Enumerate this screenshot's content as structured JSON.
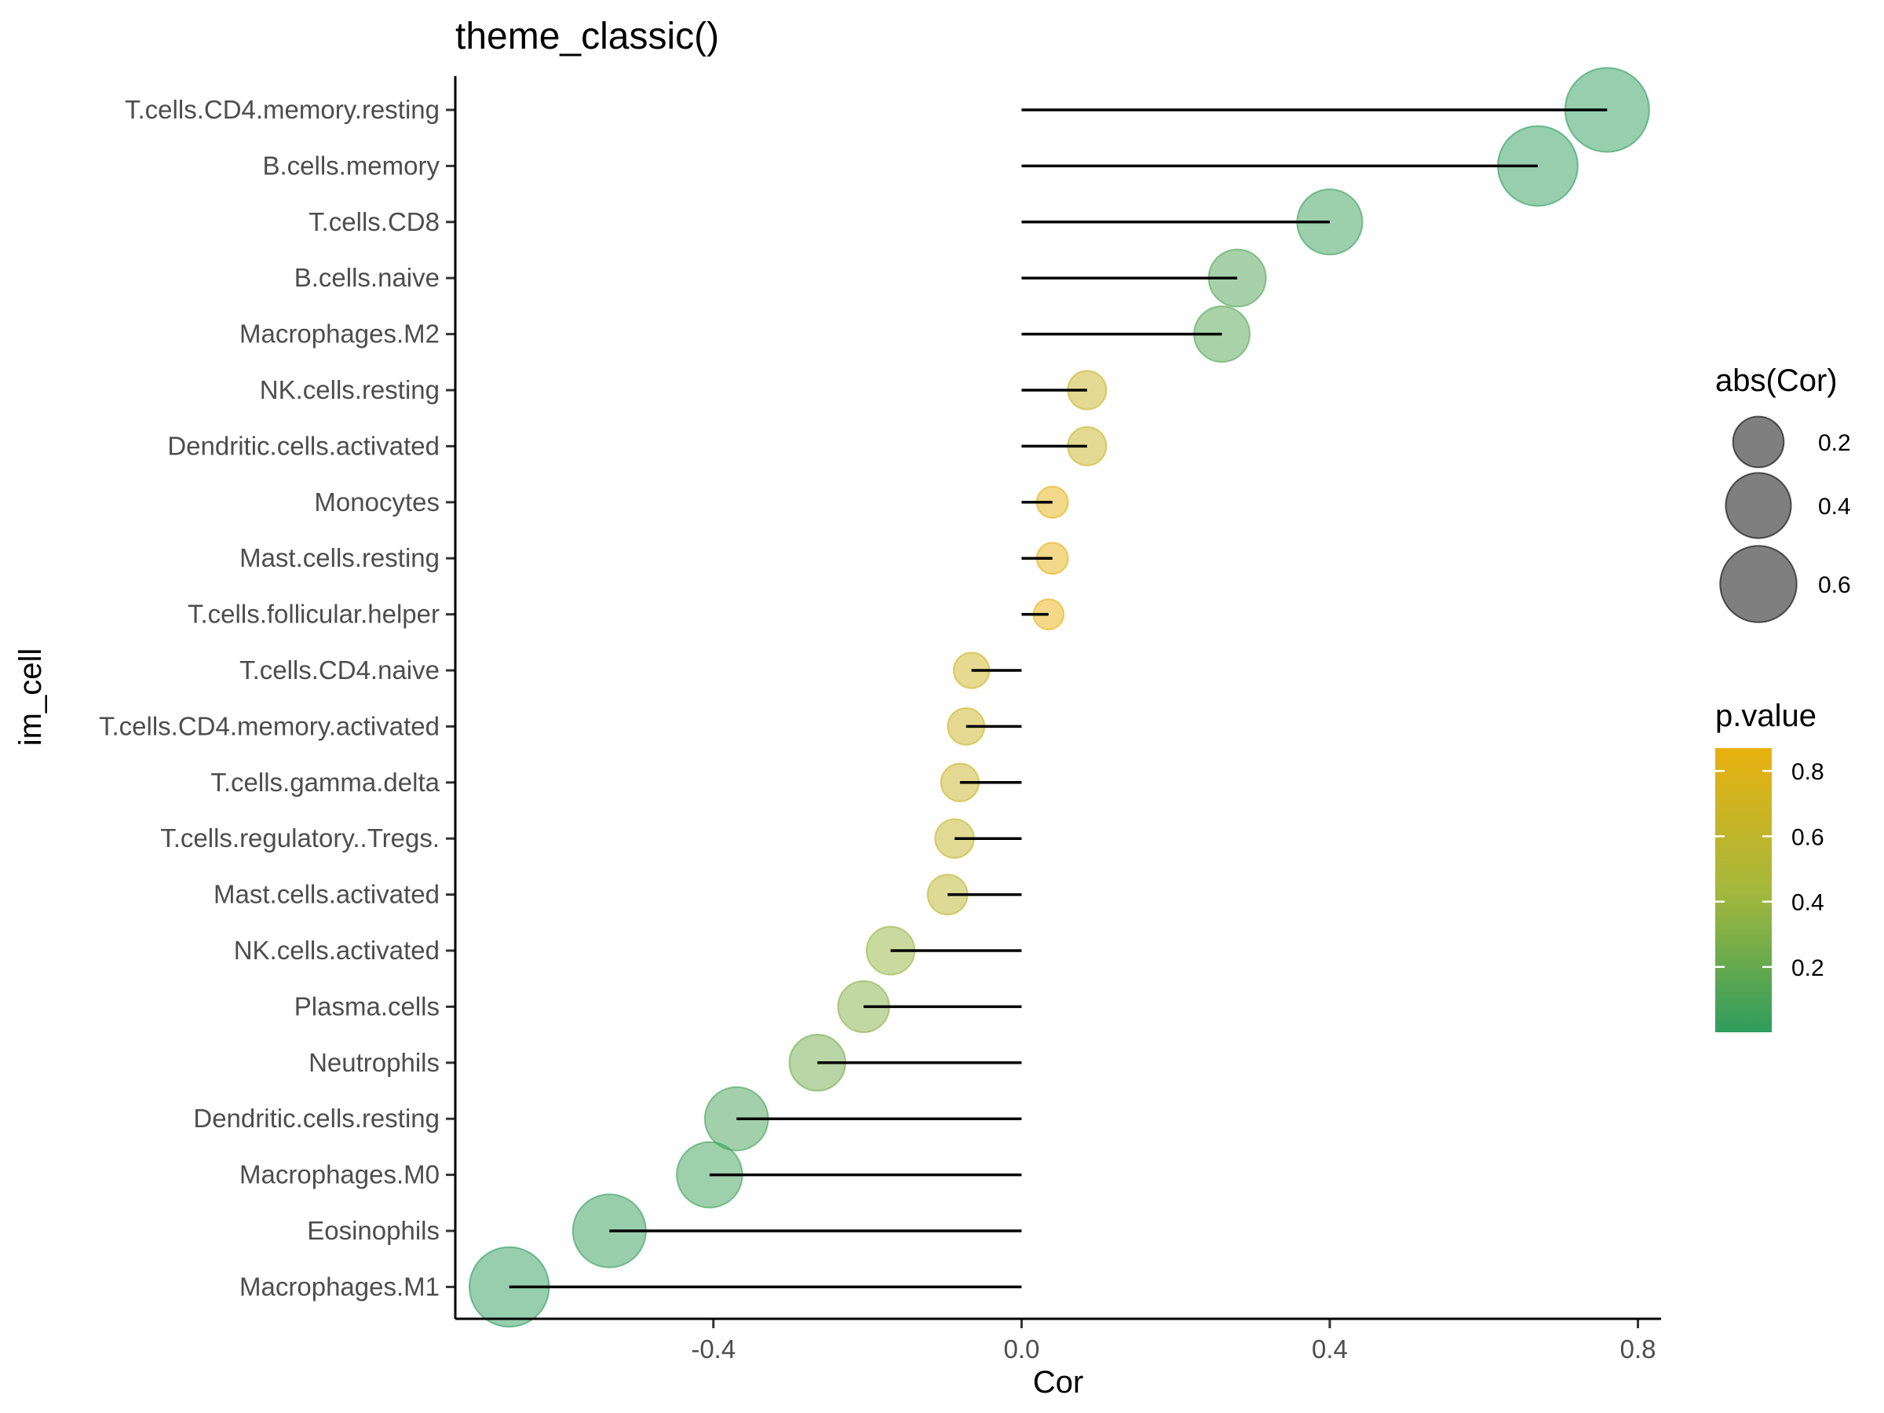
{
  "chart_data": {
    "type": "lollipop",
    "title": "theme_classic()",
    "xlabel": "Cor",
    "ylabel": "im_cell",
    "xlim": [
      -0.735,
      0.83
    ],
    "xticks": [
      -0.4,
      0.0,
      0.4,
      0.8
    ],
    "xtick_labels": [
      "-0.4",
      "0.0",
      "0.4",
      "0.8"
    ],
    "grid": false,
    "categories": [
      "T.cells.CD4.memory.resting",
      "B.cells.memory",
      "T.cells.CD8",
      "B.cells.naive",
      "Macrophages.M2",
      "NK.cells.resting",
      "Dendritic.cells.activated",
      "Monocytes",
      "Mast.cells.resting",
      "T.cells.follicular.helper",
      "T.cells.CD4.naive",
      "T.cells.CD4.memory.activated",
      "T.cells.gamma.delta",
      "T.cells.regulatory..Tregs.",
      "Mast.cells.activated",
      "NK.cells.activated",
      "Plasma.cells",
      "Neutrophils",
      "Dendritic.cells.resting",
      "Macrophages.M0",
      "Eosinophils",
      "Macrophages.M1"
    ],
    "values": [
      0.76,
      0.67,
      0.4,
      0.28,
      0.26,
      0.085,
      0.085,
      0.04,
      0.04,
      0.035,
      -0.065,
      -0.072,
      -0.08,
      -0.087,
      -0.096,
      -0.17,
      -0.205,
      -0.265,
      -0.37,
      -0.405,
      -0.535,
      -0.665
    ],
    "p_values": [
      0.0001,
      0.0002,
      0.04,
      0.12,
      0.14,
      0.66,
      0.66,
      0.85,
      0.85,
      0.87,
      0.7,
      0.68,
      0.66,
      0.62,
      0.58,
      0.38,
      0.32,
      0.24,
      0.08,
      0.06,
      0.02,
      0.002
    ],
    "size_legend": {
      "title": "abs(Cor)",
      "values": [
        0.2,
        0.4,
        0.6
      ],
      "labels": [
        "0.2",
        "0.4",
        "0.6"
      ]
    },
    "color_legend": {
      "title": "p.value",
      "ticks": [
        0.2,
        0.4,
        0.6,
        0.8
      ],
      "tick_labels": [
        "0.2",
        "0.4",
        "0.6",
        "0.8"
      ],
      "range": [
        0.0,
        0.87
      ],
      "low_color": "#2e9d5d",
      "high_color": "#e9b10f"
    },
    "point_alpha": 0.5,
    "legend_position": "right"
  }
}
